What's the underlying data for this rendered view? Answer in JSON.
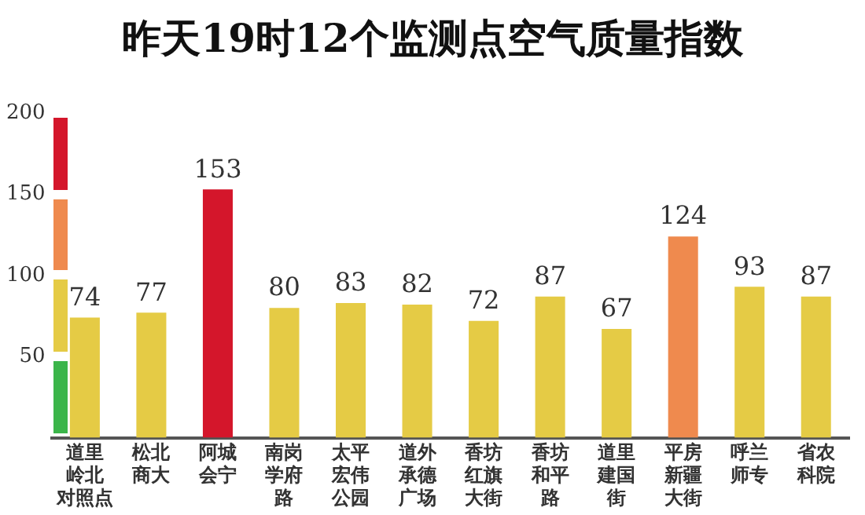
{
  "chart_data": {
    "type": "bar",
    "title": "昨天19时12个监测点空气质量指数",
    "categories": [
      "道里岭北对照点",
      "松北商大",
      "阿城会宁",
      "南岗学府路",
      "太平宏伟公园",
      "道外承德广场",
      "香坊红旗大街",
      "香坊和平路",
      "道里建国街",
      "平房新疆大街",
      "呼兰师专",
      "省农科院"
    ],
    "values": [
      74,
      77,
      153,
      80,
      83,
      82,
      72,
      87,
      67,
      124,
      93,
      87
    ],
    "colors": [
      "#e5cb45",
      "#e5cb45",
      "#d4162b",
      "#e5cb45",
      "#e5cb45",
      "#e5cb45",
      "#e5cb45",
      "#e5cb45",
      "#e5cb45",
      "#ef8a4e",
      "#e5cb45",
      "#e5cb45"
    ],
    "ylim": [
      0,
      200
    ],
    "yticks": [
      50,
      100,
      150,
      200
    ],
    "data_labels": true,
    "grid": false,
    "legend": false
  }
}
